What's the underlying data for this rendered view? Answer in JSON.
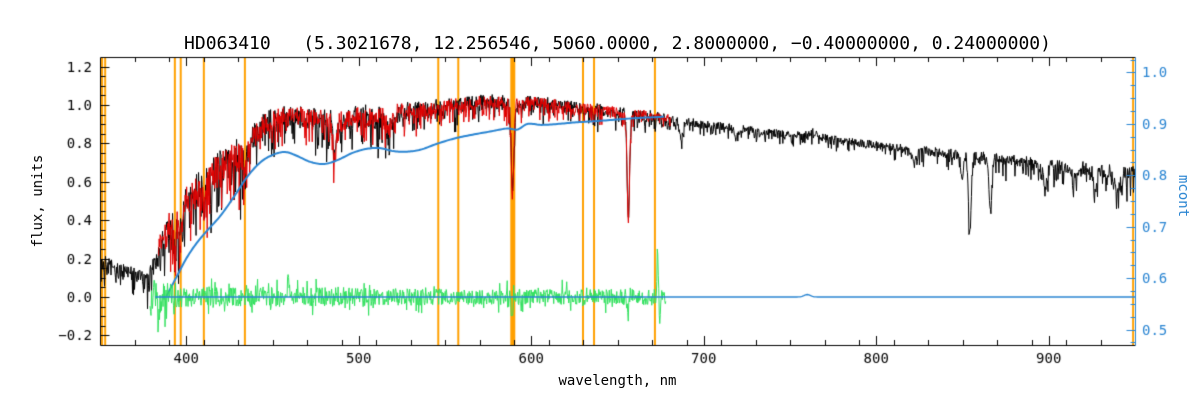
{
  "chart_data": {
    "type": "line",
    "title": "HD063410   (5.3021678, 12.256546, 5060.0000, 2.8000000, −0.40000000, 0.24000000)",
    "xlabel": "wavelength, nm",
    "ylabel": "flux, units",
    "y2label": "mcont",
    "xlim": [
      350,
      950
    ],
    "ylim": [
      -0.25,
      1.25
    ],
    "y2lim": [
      0.47,
      1.03
    ],
    "x_ticks": {
      "major": [
        400,
        500,
        600,
        700,
        800,
        900
      ],
      "labels": [
        "400",
        "500",
        "600",
        "700",
        "800",
        "900"
      ],
      "minor_step": 20
    },
    "y_ticks": {
      "major": [
        -0.2,
        0.0,
        0.2,
        0.4,
        0.6,
        0.8,
        1.0,
        1.2
      ],
      "labels": [
        "−0.2",
        "0.0",
        "0.2",
        "0.4",
        "0.6",
        "0.8",
        "1.0",
        "1.2"
      ],
      "minor_step": 0.05
    },
    "y2_ticks": {
      "major": [
        0.5,
        0.6,
        0.7,
        0.8,
        0.9,
        1.0
      ],
      "labels": [
        "0.5",
        "0.6",
        "0.7",
        "0.8",
        "0.9",
        "1.0"
      ],
      "minor_step": 0.025
    },
    "colors": {
      "axis": "#000000",
      "observed": "#000000",
      "fit": "#e00000",
      "continuum": "#2a85d2",
      "residual": "#32e05e",
      "marker": "#ffa000"
    },
    "orange_lines": [
      {
        "x": 351.2,
        "w": 2
      },
      {
        "x": 353.0,
        "w": 2
      },
      {
        "x": 393.4,
        "w": 2
      },
      {
        "x": 396.8,
        "w": 2
      },
      {
        "x": 410.2,
        "w": 2
      },
      {
        "x": 434.0,
        "w": 2
      },
      {
        "x": 546.1,
        "w": 2
      },
      {
        "x": 557.7,
        "w": 2
      },
      {
        "x": 589.3,
        "w": 5
      },
      {
        "x": 630.0,
        "w": 2
      },
      {
        "x": 636.4,
        "w": 2
      },
      {
        "x": 671.7,
        "w": 2
      },
      {
        "x": 948.9,
        "w": 2
      }
    ],
    "features": [
      {
        "c": 393.4,
        "d": 0.17,
        "s": 1.2
      },
      {
        "c": 396.8,
        "d": 0.15,
        "s": 1.2
      },
      {
        "c": 410.2,
        "d": 0.12,
        "s": 1.1
      },
      {
        "c": 434.0,
        "d": 0.14,
        "s": 1.1
      },
      {
        "c": 486.1,
        "d": 0.17,
        "s": 1.1
      },
      {
        "c": 517.3,
        "d": 0.09,
        "s": 1.6
      },
      {
        "c": 589.2,
        "d": 0.42,
        "s": 1.1
      },
      {
        "c": 656.3,
        "d": 0.55,
        "s": 1.0
      },
      {
        "c": 687.0,
        "d": 0.09,
        "s": 1.6
      },
      {
        "c": 719.0,
        "d": 0.04,
        "s": 2.0
      },
      {
        "c": 822.0,
        "d": 0.05,
        "s": 2.2
      },
      {
        "c": 849.8,
        "d": 0.14,
        "s": 1.0
      },
      {
        "c": 854.2,
        "d": 0.4,
        "s": 1.1
      },
      {
        "c": 866.2,
        "d": 0.28,
        "s": 1.1
      },
      {
        "c": 898.0,
        "d": 0.12,
        "s": 1.6
      },
      {
        "c": 915.0,
        "d": 0.06,
        "s": 2.0
      },
      {
        "c": 927.0,
        "d": 0.08,
        "s": 1.6
      },
      {
        "c": 940.0,
        "d": 0.1,
        "s": 2.2
      }
    ],
    "series": [
      {
        "name": "observed-spectrum",
        "color": "#000000",
        "width": 1,
        "range": [
          350,
          950
        ],
        "seed": 7,
        "noise_scale": 1.0,
        "envelope": [
          [
            350,
            0.17,
            0.07
          ],
          [
            356,
            0.155,
            0.065
          ],
          [
            362,
            0.14,
            0.06
          ],
          [
            368,
            0.12,
            0.055
          ],
          [
            373,
            0.105,
            0.05
          ],
          [
            377,
            0.09,
            0.05
          ],
          [
            380,
            0.12,
            0.08
          ],
          [
            383,
            0.2,
            0.1
          ],
          [
            386,
            0.3,
            0.12
          ],
          [
            390,
            0.36,
            0.13
          ],
          [
            394,
            0.4,
            0.14
          ],
          [
            398,
            0.48,
            0.14
          ],
          [
            402,
            0.52,
            0.13
          ],
          [
            406,
            0.55,
            0.13
          ],
          [
            410,
            0.57,
            0.13
          ],
          [
            414,
            0.62,
            0.12
          ],
          [
            418,
            0.66,
            0.12
          ],
          [
            422,
            0.69,
            0.11
          ],
          [
            426,
            0.72,
            0.11
          ],
          [
            430,
            0.73,
            0.12
          ],
          [
            434,
            0.76,
            0.11
          ],
          [
            438,
            0.82,
            0.1
          ],
          [
            442,
            0.87,
            0.09
          ],
          [
            446,
            0.9,
            0.08
          ],
          [
            450,
            0.92,
            0.08
          ],
          [
            456,
            0.94,
            0.07
          ],
          [
            462,
            0.95,
            0.07
          ],
          [
            468,
            0.94,
            0.07
          ],
          [
            474,
            0.92,
            0.08
          ],
          [
            480,
            0.92,
            0.08
          ],
          [
            486,
            0.9,
            0.09
          ],
          [
            492,
            0.92,
            0.08
          ],
          [
            498,
            0.94,
            0.07
          ],
          [
            504,
            0.94,
            0.08
          ],
          [
            510,
            0.93,
            0.08
          ],
          [
            516,
            0.94,
            0.08
          ],
          [
            522,
            0.96,
            0.07
          ],
          [
            528,
            0.975,
            0.06
          ],
          [
            534,
            0.97,
            0.06
          ],
          [
            540,
            0.97,
            0.06
          ],
          [
            546,
            0.99,
            0.055
          ],
          [
            552,
            1.0,
            0.05
          ],
          [
            558,
            1.0,
            0.05
          ],
          [
            564,
            1.01,
            0.05
          ],
          [
            570,
            1.02,
            0.045
          ],
          [
            576,
            1.02,
            0.045
          ],
          [
            582,
            1.015,
            0.05
          ],
          [
            588,
            1.0,
            0.05
          ],
          [
            594,
            1.01,
            0.045
          ],
          [
            600,
            1.02,
            0.04
          ],
          [
            608,
            1.01,
            0.04
          ],
          [
            616,
            1.0,
            0.04
          ],
          [
            624,
            0.99,
            0.04
          ],
          [
            632,
            0.98,
            0.04
          ],
          [
            640,
            0.975,
            0.04
          ],
          [
            648,
            0.965,
            0.04
          ],
          [
            656,
            0.955,
            0.04
          ],
          [
            664,
            0.95,
            0.038
          ],
          [
            672,
            0.94,
            0.036
          ],
          [
            680,
            0.93,
            0.032
          ],
          [
            690,
            0.915,
            0.028
          ],
          [
            700,
            0.9,
            0.026
          ],
          [
            710,
            0.89,
            0.026
          ],
          [
            720,
            0.88,
            0.025
          ],
          [
            730,
            0.868,
            0.025
          ],
          [
            740,
            0.856,
            0.025
          ],
          [
            750,
            0.845,
            0.025
          ],
          [
            758,
            0.838,
            0.028
          ],
          [
            763,
            0.862,
            0.026
          ],
          [
            768,
            0.832,
            0.025
          ],
          [
            776,
            0.822,
            0.025
          ],
          [
            784,
            0.812,
            0.025
          ],
          [
            792,
            0.802,
            0.025
          ],
          [
            800,
            0.792,
            0.026
          ],
          [
            810,
            0.78,
            0.027
          ],
          [
            820,
            0.77,
            0.028
          ],
          [
            830,
            0.76,
            0.03
          ],
          [
            840,
            0.75,
            0.032
          ],
          [
            848,
            0.74,
            0.036
          ],
          [
            856,
            0.73,
            0.04
          ],
          [
            864,
            0.725,
            0.04
          ],
          [
            872,
            0.72,
            0.038
          ],
          [
            880,
            0.712,
            0.038
          ],
          [
            888,
            0.705,
            0.04
          ],
          [
            896,
            0.695,
            0.04
          ],
          [
            904,
            0.685,
            0.042
          ],
          [
            912,
            0.678,
            0.042
          ],
          [
            920,
            0.67,
            0.045
          ],
          [
            928,
            0.66,
            0.047
          ],
          [
            936,
            0.65,
            0.05
          ],
          [
            944,
            0.643,
            0.052
          ],
          [
            950,
            0.638,
            0.055
          ]
        ]
      },
      {
        "name": "fitted-spectrum",
        "color": "#e00000",
        "width": 1,
        "range": [
          384,
          681
        ],
        "seed": 5150,
        "noise_scale": 0.85,
        "envelope_ref": 0
      },
      {
        "name": "continuum-mcont",
        "color": "#2a85d2",
        "width": 2,
        "axis": "right",
        "points": [
          [
            388.5,
            0.565
          ],
          [
            394,
            0.6
          ],
          [
            400,
            0.638
          ],
          [
            406,
            0.668
          ],
          [
            412,
            0.692
          ],
          [
            420,
            0.722
          ],
          [
            428,
            0.76
          ],
          [
            436,
            0.8
          ],
          [
            444,
            0.828
          ],
          [
            452,
            0.842
          ],
          [
            458,
            0.845
          ],
          [
            464,
            0.838
          ],
          [
            472,
            0.826
          ],
          [
            480,
            0.822
          ],
          [
            488,
            0.83
          ],
          [
            496,
            0.843
          ],
          [
            504,
            0.851
          ],
          [
            512,
            0.853
          ],
          [
            520,
            0.847
          ],
          [
            528,
            0.846
          ],
          [
            536,
            0.85
          ],
          [
            546,
            0.862
          ],
          [
            556,
            0.872
          ],
          [
            566,
            0.879
          ],
          [
            576,
            0.885
          ],
          [
            586,
            0.891
          ],
          [
            592,
            0.889
          ],
          [
            598,
            0.9
          ],
          [
            606,
            0.898
          ],
          [
            616,
            0.9
          ],
          [
            626,
            0.903
          ],
          [
            636,
            0.905
          ],
          [
            648,
            0.908
          ],
          [
            660,
            0.911
          ],
          [
            672,
            0.913
          ],
          [
            677,
            0.914
          ]
        ]
      },
      {
        "name": "residual",
        "color": "#32e05e",
        "width": 1,
        "range": [
          379,
          678
        ],
        "seed": 99,
        "amplitude": [
          [
            379,
            0.1
          ],
          [
            386,
            0.08
          ],
          [
            395,
            0.06
          ],
          [
            410,
            0.05
          ],
          [
            430,
            0.05
          ],
          [
            455,
            0.055
          ],
          [
            480,
            0.05
          ],
          [
            510,
            0.047
          ],
          [
            540,
            0.043
          ],
          [
            570,
            0.04
          ],
          [
            600,
            0.04
          ],
          [
            630,
            0.04
          ],
          [
            655,
            0.042
          ],
          [
            670,
            0.04
          ],
          [
            678,
            0.035
          ]
        ],
        "spikes": [
          {
            "c": 384.0,
            "a": -0.13,
            "s": 0.7
          },
          {
            "c": 459.0,
            "a": 0.08,
            "s": 0.7
          },
          {
            "c": 588.8,
            "a": -0.11,
            "s": 0.7
          },
          {
            "c": 656.0,
            "a": -0.12,
            "s": 0.7
          },
          {
            "c": 673.2,
            "a": 0.235,
            "s": 0.5
          },
          {
            "c": 674.6,
            "a": -0.1,
            "s": 0.5
          }
        ]
      },
      {
        "name": "zero-line",
        "color": "#2a85d2",
        "width": 1.3,
        "range": [
          382,
          950
        ],
        "level": 0.0,
        "bump": {
          "c": 760,
          "a": 0.013,
          "s": 2.5
        }
      }
    ]
  }
}
